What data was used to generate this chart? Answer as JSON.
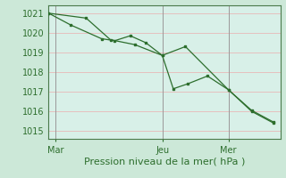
{
  "xlabel": "Pression niveau de la mer( hPa )",
  "bg_color": "#cce8d8",
  "plot_bg_color": "#d8f0e8",
  "grid_color": "#e8b8b8",
  "line_color": "#2d6e2d",
  "marker_color": "#2d6e2d",
  "yticks": [
    1015,
    1016,
    1017,
    1018,
    1019,
    1020,
    1021
  ],
  "ylim": [
    1014.6,
    1021.4
  ],
  "xlim": [
    0,
    10.5
  ],
  "xtick_positions": [
    0.3,
    5.15,
    8.15
  ],
  "xtick_labels": [
    "Mar",
    "Jeu",
    "Mer"
  ],
  "vline_positions": [
    0.3,
    5.15,
    8.15
  ],
  "series1_x": [
    0.0,
    1.0,
    2.4,
    3.0,
    3.7,
    4.4,
    5.15,
    5.65,
    6.3,
    7.2,
    8.15,
    9.2,
    10.2
  ],
  "series1_y": [
    1021.0,
    1020.4,
    1019.7,
    1019.6,
    1019.85,
    1019.5,
    1018.85,
    1017.15,
    1017.4,
    1017.8,
    1017.1,
    1016.0,
    1015.4
  ],
  "series2_x": [
    0.0,
    1.7,
    2.8,
    3.9,
    5.15,
    6.2,
    8.15,
    9.2,
    10.2
  ],
  "series2_y": [
    1021.0,
    1020.75,
    1019.65,
    1019.4,
    1018.85,
    1019.3,
    1017.1,
    1016.05,
    1015.45
  ],
  "tick_fontsize": 7,
  "xlabel_fontsize": 8,
  "xlabel_color": "#2d6e2d",
  "spine_color": "#4a7a4a",
  "axis_label_color": "#2d6e2d"
}
